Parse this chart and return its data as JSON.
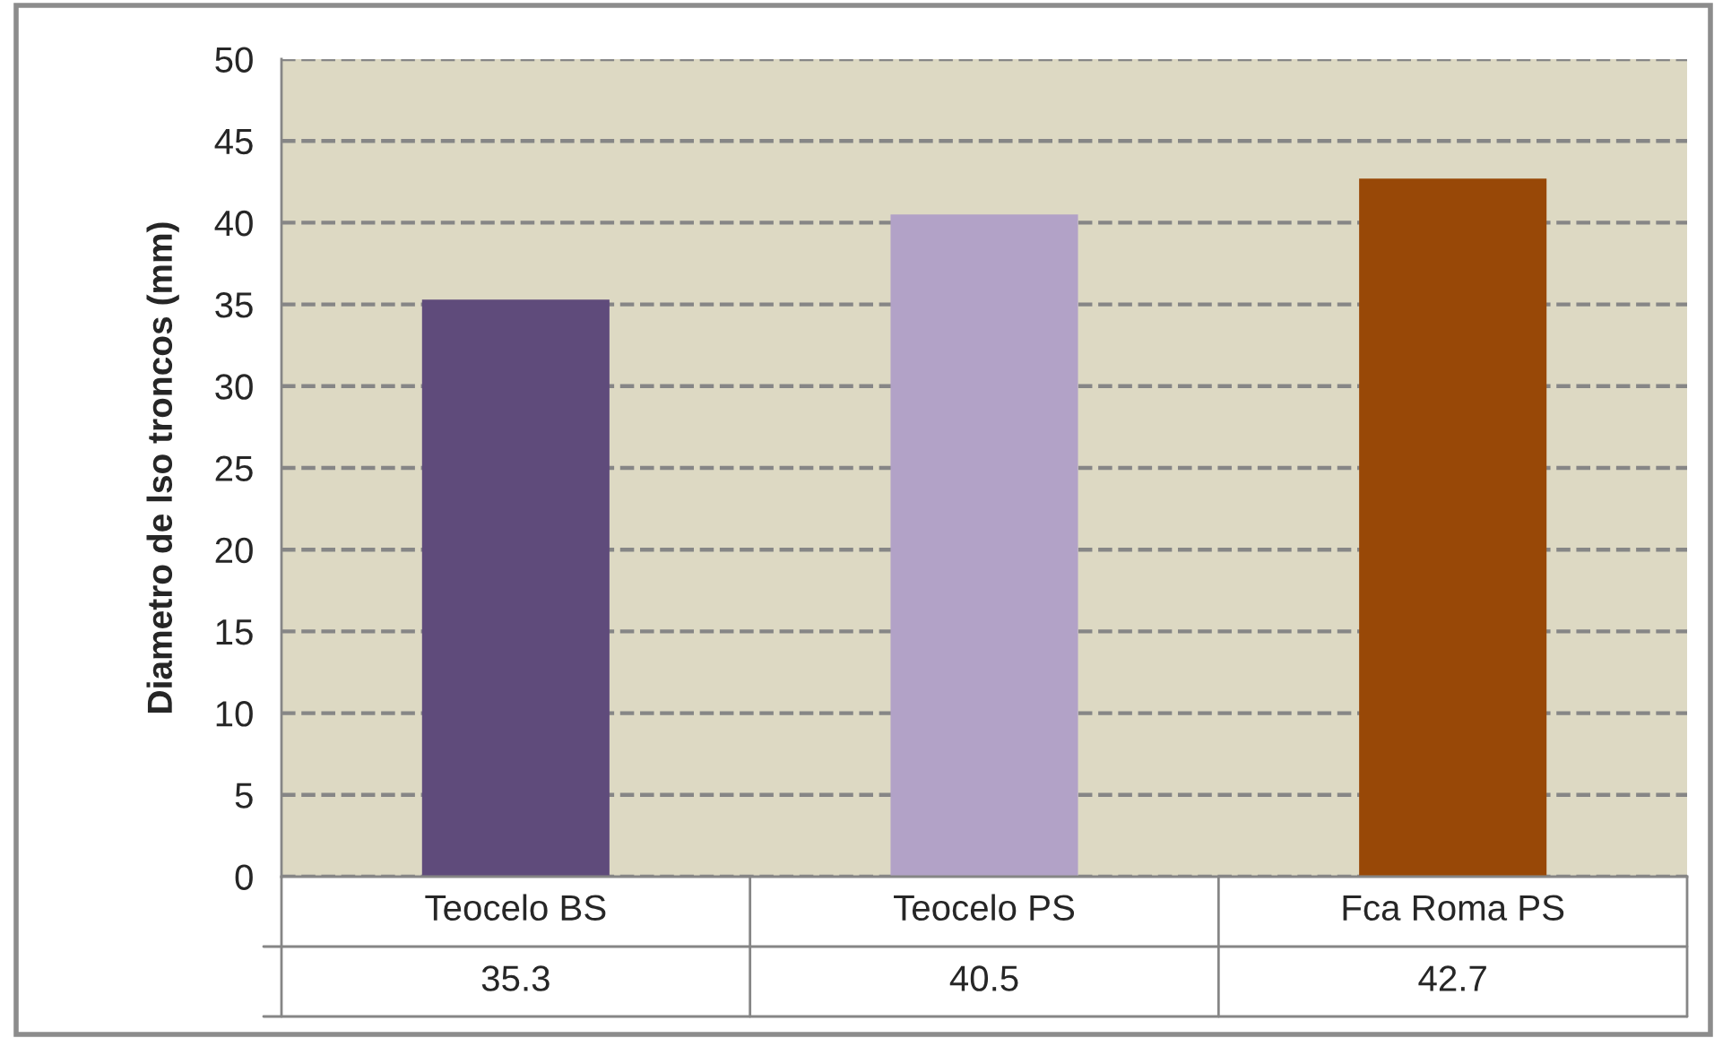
{
  "chart_data": {
    "type": "bar",
    "ylabel": "Diametro de lso troncos (mm)",
    "categories": [
      "Teocelo BS",
      "Teocelo PS",
      "Fca Roma PS"
    ],
    "values": [
      35.3,
      40.5,
      42.7
    ],
    "colors": [
      "#5f4b7b",
      "#b2a2c7",
      "#984807"
    ],
    "ylim": [
      0,
      50
    ],
    "yticks": [
      0,
      5,
      10,
      15,
      20,
      25,
      30,
      35,
      40,
      45,
      50
    ],
    "grid": "y",
    "data_labels": true
  }
}
